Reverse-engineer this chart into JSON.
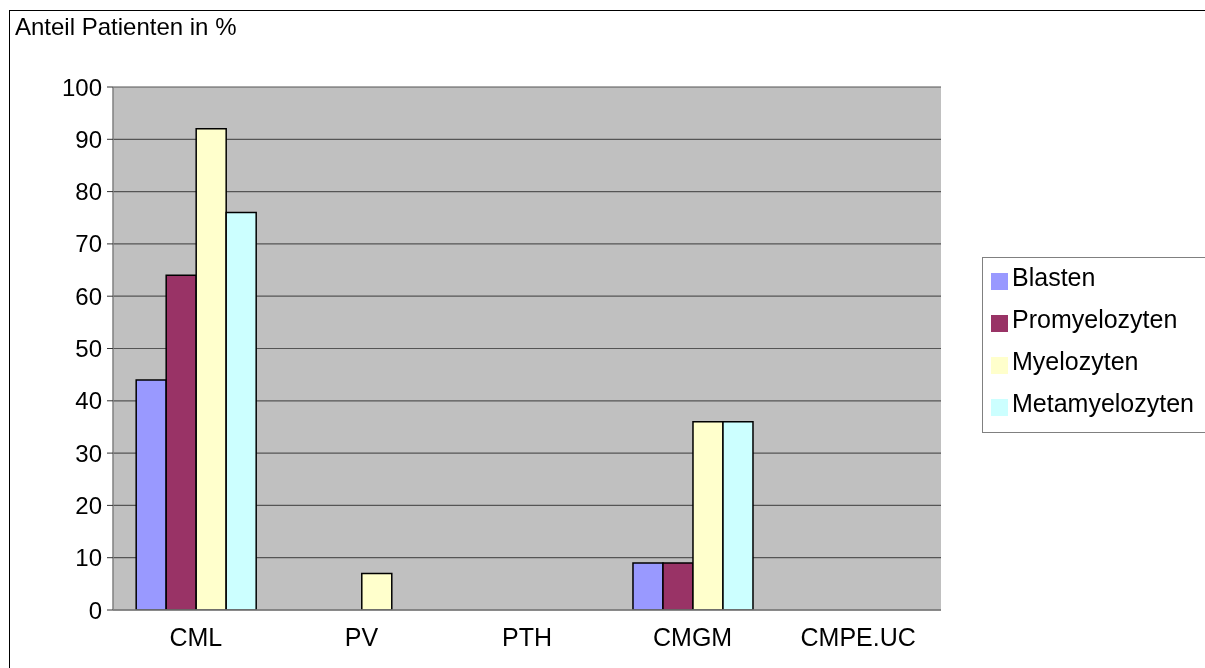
{
  "chart_data": {
    "type": "bar",
    "ylabel": "Anteil Patienten in %",
    "categories": [
      "CML",
      "PV",
      "PTH",
      "CMGM",
      "CMPE.UC"
    ],
    "series": [
      {
        "name": "Blasten",
        "color": "#9999ff",
        "values": [
          44,
          0,
          0,
          9,
          0
        ]
      },
      {
        "name": "Promyelozyten",
        "color": "#993366",
        "values": [
          64,
          0,
          0,
          9,
          0
        ]
      },
      {
        "name": "Myelozyten",
        "color": "#ffffcc",
        "values": [
          92,
          7,
          0,
          36,
          0
        ]
      },
      {
        "name": "Metamyelozyten",
        "color": "#ccffff",
        "values": [
          76,
          0,
          0,
          36,
          0
        ]
      }
    ],
    "ylim": [
      0,
      100
    ],
    "yticks": [
      0,
      10,
      20,
      30,
      40,
      50,
      60,
      70,
      80,
      90,
      100
    ],
    "grid": "y",
    "legend": "right"
  }
}
